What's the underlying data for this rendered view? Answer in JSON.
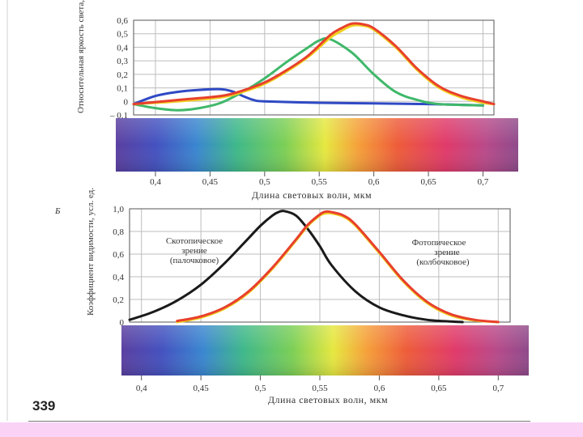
{
  "page": {
    "page_number": "339",
    "footer_color": "#f9d2f6"
  },
  "chart_data": [
    {
      "type": "line",
      "panel_label": "",
      "ylabel": "Относительная яркость света, усл. ед.",
      "xlabel": "Длина световых волн, мкм",
      "xlim": [
        0.38,
        0.71
      ],
      "ylim": [
        -0.1,
        0.6
      ],
      "y_ticks": [
        0.6,
        0.5,
        0.4,
        0.3,
        0.2,
        0.1,
        0,
        -0.1
      ],
      "y_tick_labels": [
        "0,6",
        "0,5",
        "0,4",
        "0,3",
        "0,2",
        "0,1",
        "0",
        "– 0,1"
      ],
      "x_ticks": [
        0.4,
        0.45,
        0.5,
        0.55,
        0.6,
        0.65,
        0.7
      ],
      "x_tick_labels": [
        "0,4",
        "0,45",
        "0,5",
        "0,55",
        "0,6",
        "0,65",
        "0,7"
      ],
      "grid": true,
      "series": [
        {
          "color": "#2f49c4",
          "x": [
            0.38,
            0.4,
            0.42,
            0.44,
            0.46,
            0.47,
            0.48,
            0.49,
            0.5,
            0.55,
            0.6,
            0.65,
            0.7
          ],
          "y": [
            -0.02,
            0.04,
            0.07,
            0.085,
            0.09,
            0.075,
            0.04,
            0.01,
            0.0,
            -0.01,
            -0.015,
            -0.02,
            -0.03
          ]
        },
        {
          "color": "#3fb86a",
          "x": [
            0.38,
            0.4,
            0.42,
            0.44,
            0.46,
            0.48,
            0.5,
            0.52,
            0.54,
            0.55,
            0.56,
            0.58,
            0.6,
            0.62,
            0.64,
            0.66,
            0.7
          ],
          "y": [
            -0.02,
            -0.05,
            -0.065,
            -0.05,
            -0.01,
            0.07,
            0.17,
            0.29,
            0.4,
            0.45,
            0.46,
            0.36,
            0.2,
            0.07,
            0.01,
            -0.02,
            -0.03
          ]
        },
        {
          "color": "#f0d020",
          "x": [
            0.38,
            0.42,
            0.46,
            0.48,
            0.5,
            0.52,
            0.54,
            0.56,
            0.57,
            0.58,
            0.59,
            0.6,
            0.62,
            0.64,
            0.66,
            0.68,
            0.7,
            0.71
          ],
          "y": [
            -0.02,
            0.0,
            0.03,
            0.07,
            0.13,
            0.22,
            0.33,
            0.47,
            0.52,
            0.56,
            0.56,
            0.53,
            0.4,
            0.23,
            0.1,
            0.03,
            -0.01,
            -0.02
          ]
        },
        {
          "color": "#e8402c",
          "x": [
            0.38,
            0.42,
            0.46,
            0.48,
            0.5,
            0.52,
            0.54,
            0.56,
            0.57,
            0.58,
            0.59,
            0.6,
            0.62,
            0.64,
            0.66,
            0.68,
            0.7,
            0.71
          ],
          "y": [
            -0.02,
            0.01,
            0.04,
            0.08,
            0.14,
            0.23,
            0.34,
            0.49,
            0.54,
            0.575,
            0.57,
            0.54,
            0.41,
            0.24,
            0.11,
            0.04,
            0.0,
            -0.02
          ]
        }
      ]
    },
    {
      "type": "line",
      "panel_label": "Б",
      "ylabel": "Коэффициент видимости, усл. ед.",
      "xlabel": "Длина световых волн, мкм",
      "xlim": [
        0.39,
        0.71
      ],
      "ylim": [
        0,
        1.0
      ],
      "y_ticks": [
        1.0,
        0.8,
        0.6,
        0.4,
        0.2,
        0
      ],
      "y_tick_labels": [
        "1,0",
        "0,8",
        "0,6",
        "0,4",
        "0,2",
        "0"
      ],
      "x_ticks": [
        0.4,
        0.45,
        0.5,
        0.55,
        0.6,
        0.65,
        0.7
      ],
      "x_tick_labels": [
        "0,4",
        "0,45",
        "0,5",
        "0,55",
        "0,6",
        "0,65",
        "0,7"
      ],
      "grid": true,
      "annotations": [
        {
          "lines": [
            "Скотопическое",
            "зрение",
            "(палочковое)"
          ]
        },
        {
          "lines": [
            "Фотопическое",
            "зрение",
            "(колбочковое)"
          ]
        }
      ],
      "series": [
        {
          "color": "#1a1a1a",
          "x": [
            0.39,
            0.41,
            0.43,
            0.45,
            0.47,
            0.49,
            0.5,
            0.51,
            0.515,
            0.52,
            0.53,
            0.54,
            0.55,
            0.56,
            0.58,
            0.6,
            0.62,
            0.64,
            0.66,
            0.67
          ],
          "y": [
            0.02,
            0.09,
            0.19,
            0.33,
            0.52,
            0.74,
            0.85,
            0.94,
            0.97,
            0.98,
            0.94,
            0.82,
            0.67,
            0.5,
            0.27,
            0.13,
            0.06,
            0.02,
            0.005,
            0.0
          ]
        },
        {
          "color": "#f0d020",
          "x": [
            0.43,
            0.45,
            0.47,
            0.49,
            0.51,
            0.53,
            0.54,
            0.55,
            0.555,
            0.56,
            0.57,
            0.58,
            0.6,
            0.62,
            0.64,
            0.66,
            0.68,
            0.7
          ],
          "y": [
            0.0,
            0.04,
            0.12,
            0.26,
            0.47,
            0.72,
            0.85,
            0.94,
            0.96,
            0.96,
            0.93,
            0.85,
            0.61,
            0.36,
            0.17,
            0.06,
            0.015,
            0.0
          ]
        },
        {
          "color": "#e8402c",
          "x": [
            0.43,
            0.45,
            0.47,
            0.49,
            0.51,
            0.53,
            0.54,
            0.55,
            0.555,
            0.56,
            0.57,
            0.58,
            0.6,
            0.62,
            0.64,
            0.66,
            0.68,
            0.7
          ],
          "y": [
            0.01,
            0.05,
            0.13,
            0.27,
            0.48,
            0.73,
            0.86,
            0.95,
            0.975,
            0.97,
            0.94,
            0.86,
            0.62,
            0.37,
            0.18,
            0.07,
            0.02,
            0.0
          ]
        }
      ]
    }
  ]
}
